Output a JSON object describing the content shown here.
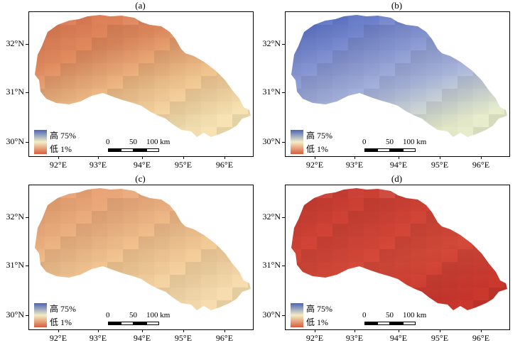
{
  "panels": [
    {
      "label": "(a)",
      "fill_scheme": "warm",
      "colors": [
        "#d9734f",
        "#e08a5e",
        "#efc08a",
        "#f6e2b2"
      ]
    },
    {
      "label": "(b)",
      "fill_scheme": "cool",
      "colors": [
        "#4f68c0",
        "#7f8fd0",
        "#aab6dc",
        "#e7eccc"
      ]
    },
    {
      "label": "(c)",
      "fill_scheme": "warm-light",
      "colors": [
        "#e69a6d",
        "#ebae7e",
        "#f2c894",
        "#f6dcae"
      ]
    },
    {
      "label": "(d)",
      "fill_scheme": "red",
      "colors": [
        "#c63a30",
        "#cf4235",
        "#d54a3a",
        "#c9372d"
      ]
    }
  ],
  "legend": {
    "high_label": "高 75%",
    "low_label": "低 1%",
    "colors": [
      "#4a64b8",
      "#f3eec4",
      "#d95d3d"
    ]
  },
  "scalebar": {
    "labels": [
      "0",
      "50",
      "100 km"
    ]
  },
  "lat_labels": [
    "32°N",
    "31°N",
    "30°N"
  ],
  "lon_labels": [
    "92°E",
    "93°E",
    "94°E",
    "95°E",
    "96°E"
  ]
}
